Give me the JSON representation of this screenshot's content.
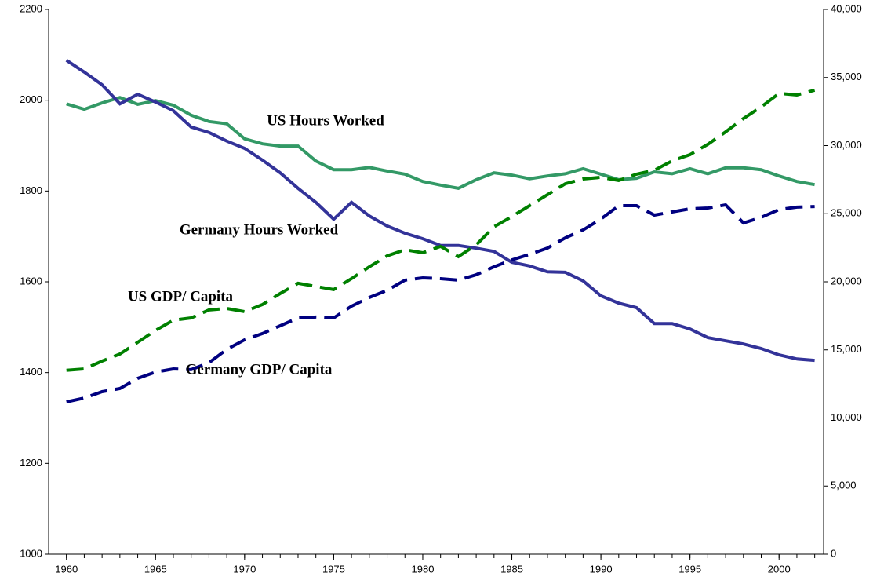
{
  "chart_data": {
    "type": "line",
    "annotations": [
      "US Hours Worked",
      "Germany Hours Worked",
      "US GDP/ Capita",
      "Germany GDP/ Capita"
    ],
    "x": [
      1960,
      1961,
      1962,
      1963,
      1964,
      1965,
      1966,
      1967,
      1968,
      1969,
      1970,
      1971,
      1972,
      1973,
      1974,
      1975,
      1976,
      1977,
      1978,
      1979,
      1980,
      1981,
      1982,
      1983,
      1984,
      1985,
      1986,
      1987,
      1988,
      1989,
      1990,
      1991,
      1992,
      1993,
      1994,
      1995,
      1996,
      1997,
      1998,
      1999,
      2000,
      2001,
      2002
    ],
    "xlim": [
      1959,
      2002.5
    ],
    "xticks": [
      1960,
      1965,
      1970,
      1975,
      1980,
      1985,
      1990,
      1995,
      2000
    ],
    "ylim": [
      1000,
      2200
    ],
    "yticks": [
      1000,
      1200,
      1400,
      1600,
      1800,
      2000,
      2200
    ],
    "y2lim": [
      0,
      40000
    ],
    "y2ticks": [
      0,
      {
        "value": 5000,
        "label": "5,000"
      },
      {
        "value": 10000,
        "label": "10,000"
      },
      {
        "value": 15000,
        "label": "15,000"
      },
      {
        "value": 20000,
        "label": "20,000"
      },
      {
        "value": 25000,
        "label": "25,000"
      },
      {
        "value": 30000,
        "label": "30,000"
      },
      {
        "value": 35000,
        "label": "35,000"
      },
      {
        "value": 40000,
        "label": "40,000"
      }
    ],
    "series": [
      {
        "name": "US Hours Worked",
        "color": "#339966",
        "dashed": false,
        "values": [
          1992,
          1980,
          1994,
          2006,
          1991,
          1999,
          1989,
          1967,
          1953,
          1948,
          1915,
          1904,
          1899,
          1899,
          1866,
          1847,
          1847,
          1852,
          1844,
          1837,
          1821,
          1813,
          1806,
          1825,
          1840,
          1835,
          1827,
          1833,
          1838,
          1849,
          1837,
          1825,
          1828,
          1842,
          1838,
          1849,
          1838,
          1851,
          1851,
          1847,
          1833,
          1821,
          1814
        ]
      },
      {
        "name": "Germany Hours Worked",
        "color": "#333399",
        "dashed": false,
        "values": [
          2088,
          2062,
          2034,
          1992,
          2013,
          1996,
          1977,
          1941,
          1929,
          1910,
          1894,
          1868,
          1840,
          1806,
          1775,
          1738,
          1775,
          1745,
          1723,
          1707,
          1695,
          1680,
          1680,
          1674,
          1667,
          1643,
          1635,
          1622,
          1621,
          1602,
          1569,
          1553,
          1543,
          1508,
          1508,
          1496,
          1477,
          1470,
          1463,
          1453,
          1439,
          1430,
          1427
        ]
      },
      {
        "name": "US GDP/ Capita",
        "color": "#008000",
        "dashed": true,
        "axis": "y2",
        "values": [
          13500,
          13600,
          14180,
          14700,
          15560,
          16430,
          17180,
          17350,
          17930,
          18040,
          17810,
          18330,
          19140,
          19890,
          19660,
          19430,
          20230,
          21100,
          21900,
          22360,
          22130,
          22600,
          21850,
          22710,
          24040,
          24790,
          25590,
          26400,
          27200,
          27550,
          27670,
          27440,
          27900,
          28190,
          28880,
          29340,
          30090,
          31010,
          31990,
          32850,
          33830,
          33720,
          34070
        ]
      },
      {
        "name": "Germany GDP/ Capita",
        "color": "#000080",
        "dashed": true,
        "axis": "y2",
        "values": [
          11180,
          11470,
          11930,
          12160,
          12910,
          13370,
          13600,
          13550,
          14060,
          15040,
          15740,
          16200,
          16770,
          17350,
          17410,
          17350,
          18210,
          18850,
          19370,
          20120,
          20290,
          20230,
          20120,
          20520,
          21100,
          21610,
          22020,
          22480,
          23230,
          23810,
          24610,
          25590,
          25590,
          24900,
          25130,
          25360,
          25420,
          25650,
          24320,
          24730,
          25300,
          25480,
          25530
        ]
      }
    ]
  }
}
